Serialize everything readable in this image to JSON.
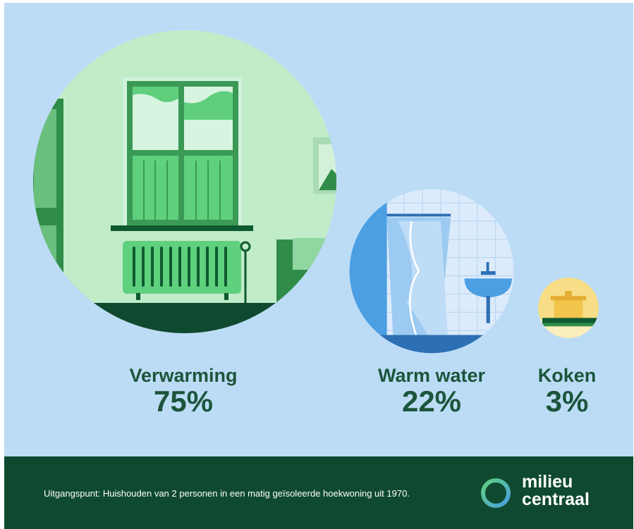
{
  "chart_data": {
    "type": "bubble",
    "unit": "%",
    "categories": [
      "Verwarming",
      "Warm water",
      "Koken"
    ],
    "values": [
      75,
      22,
      3
    ],
    "labels": [
      "75%",
      "22%",
      "3%"
    ],
    "illustrations": [
      "window-radiator",
      "shower-sink",
      "cooking-pot"
    ]
  },
  "footnote": "Uitgangspunt: Huishouden van 2 personen in een matig geïsoleerde hoekwoning uit 1970.",
  "logo": {
    "line1": "milieu",
    "line2": "centraal"
  },
  "colors": {
    "background": "#bcdcf6",
    "footer": "#0f4a30",
    "text": "#1c553b",
    "heating": "#54c476",
    "water": "#4b9fe2",
    "cooking": "#f3d57a"
  }
}
